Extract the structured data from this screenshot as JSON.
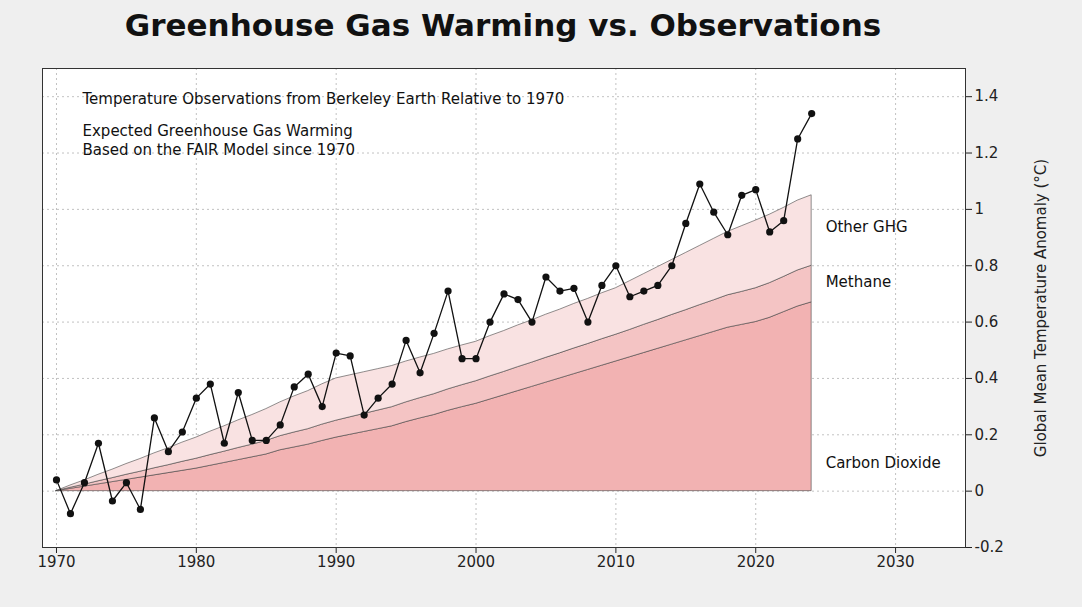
{
  "chart_data": {
    "type": "line",
    "title": "Greenhouse Gas Warming vs. Observations",
    "annotations": [
      "Expected Greenhouse Gas Warming\nBased on the FAIR Model since 1970"
    ],
    "y_label": "Global Mean Temperature Anomaly (°C)",
    "x": [
      1970,
      1971,
      1972,
      1973,
      1974,
      1975,
      1976,
      1977,
      1978,
      1979,
      1980,
      1981,
      1982,
      1983,
      1984,
      1985,
      1986,
      1987,
      1988,
      1989,
      1990,
      1991,
      1992,
      1993,
      1994,
      1995,
      1996,
      1997,
      1998,
      1999,
      2000,
      2001,
      2002,
      2003,
      2004,
      2005,
      2006,
      2007,
      2008,
      2009,
      2010,
      2011,
      2012,
      2013,
      2014,
      2015,
      2016,
      2017,
      2018,
      2019,
      2020,
      2021,
      2022,
      2023,
      2024
    ],
    "xlim": [
      1969,
      2035
    ],
    "xticks": [
      1970,
      1980,
      1990,
      2000,
      2010,
      2020,
      2030
    ],
    "ylim": [
      -0.2,
      1.5
    ],
    "yticks": [
      -0.2,
      0,
      0.2,
      0.4,
      0.6,
      0.8,
      1,
      1.2,
      1.4
    ],
    "grid": true,
    "stacked": true,
    "legend": "right",
    "series": [
      {
        "name": "Carbon Dioxide",
        "type": "area",
        "color": "#f2b2b2",
        "values": [
          0,
          0.008,
          0.016,
          0.024,
          0.032,
          0.04,
          0.048,
          0.056,
          0.064,
          0.072,
          0.08,
          0.09,
          0.1,
          0.11,
          0.12,
          0.13,
          0.145,
          0.155,
          0.165,
          0.178,
          0.19,
          0.2,
          0.21,
          0.22,
          0.23,
          0.245,
          0.258,
          0.27,
          0.285,
          0.298,
          0.31,
          0.325,
          0.34,
          0.355,
          0.37,
          0.385,
          0.4,
          0.415,
          0.43,
          0.445,
          0.46,
          0.475,
          0.49,
          0.505,
          0.52,
          0.535,
          0.55,
          0.565,
          0.58,
          0.59,
          0.6,
          0.615,
          0.635,
          0.655,
          0.67
        ]
      },
      {
        "name": "Methane",
        "type": "area",
        "color": "#f4c4c4",
        "values": [
          0,
          0.004,
          0.007,
          0.011,
          0.014,
          0.018,
          0.021,
          0.025,
          0.028,
          0.032,
          0.035,
          0.038,
          0.04,
          0.043,
          0.045,
          0.048,
          0.05,
          0.053,
          0.055,
          0.058,
          0.06,
          0.062,
          0.064,
          0.066,
          0.068,
          0.07,
          0.072,
          0.074,
          0.076,
          0.078,
          0.08,
          0.082,
          0.083,
          0.085,
          0.086,
          0.088,
          0.089,
          0.091,
          0.092,
          0.094,
          0.095,
          0.097,
          0.1,
          0.102,
          0.105,
          0.107,
          0.11,
          0.112,
          0.115,
          0.117,
          0.12,
          0.123,
          0.125,
          0.128,
          0.13
        ]
      },
      {
        "name": "Other GHG",
        "type": "area",
        "color": "#f9e2e2",
        "values": [
          0,
          0.008,
          0.015,
          0.023,
          0.03,
          0.038,
          0.045,
          0.053,
          0.06,
          0.068,
          0.075,
          0.083,
          0.09,
          0.098,
          0.105,
          0.113,
          0.12,
          0.128,
          0.135,
          0.143,
          0.15,
          0.149,
          0.148,
          0.147,
          0.146,
          0.145,
          0.144,
          0.143,
          0.142,
          0.141,
          0.14,
          0.143,
          0.145,
          0.148,
          0.15,
          0.153,
          0.155,
          0.158,
          0.16,
          0.163,
          0.165,
          0.173,
          0.18,
          0.188,
          0.195,
          0.203,
          0.21,
          0.218,
          0.225,
          0.233,
          0.24,
          0.243,
          0.245,
          0.248,
          0.25
        ]
      },
      {
        "name": "Temperature Observations from Berkeley Earth Relative to 1970",
        "type": "line",
        "color": "#111111",
        "marker": "circle",
        "line_style": "solid",
        "values": [
          0.04,
          -0.08,
          0.03,
          0.17,
          -0.035,
          0.03,
          -0.065,
          0.26,
          0.14,
          0.21,
          0.33,
          0.38,
          0.17,
          0.35,
          0.18,
          0.18,
          0.235,
          0.37,
          0.415,
          0.3,
          0.49,
          0.48,
          0.27,
          0.33,
          0.38,
          0.535,
          0.42,
          0.56,
          0.71,
          0.47,
          0.47,
          0.6,
          0.7,
          0.68,
          0.6,
          0.76,
          0.71,
          0.72,
          0.6,
          0.73,
          0.8,
          0.69,
          0.71,
          0.73,
          0.8,
          0.95,
          1.09,
          0.99,
          0.91,
          1.05,
          1.07,
          0.92,
          0.96,
          1.25,
          1.34
        ]
      }
    ]
  }
}
